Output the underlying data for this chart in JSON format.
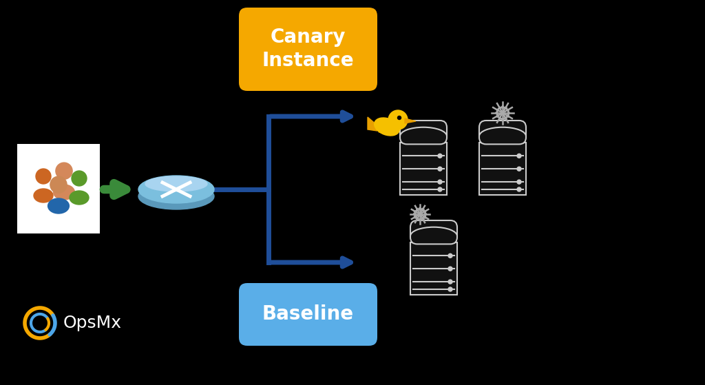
{
  "background_color": "#000000",
  "canary_box": {
    "color": "#F5A800",
    "text": "Canary\nInstance",
    "text_color": "#FFFFFF",
    "fontsize": 20
  },
  "baseline_box": {
    "color": "#5AAEE8",
    "text": "Baseline",
    "text_color": "#FFFFFF",
    "fontsize": 20
  },
  "arrow_color": "#1F4E99",
  "green_arrow_color": "#3A8A3A",
  "opsmx_text": "OpsMx",
  "opsmx_text_color": "#FFFFFF",
  "opsmx_fontsize": 18,
  "opsmx_logo_gold": "#F5A800",
  "opsmx_logo_blue": "#4DA6E8",
  "router_color": "#7BBFDE",
  "router_shadow": "#5A99BB",
  "canary_bird_color": "#F5C000",
  "server_edge_color": "#CCCCCC",
  "snowflake_color": "#888888"
}
